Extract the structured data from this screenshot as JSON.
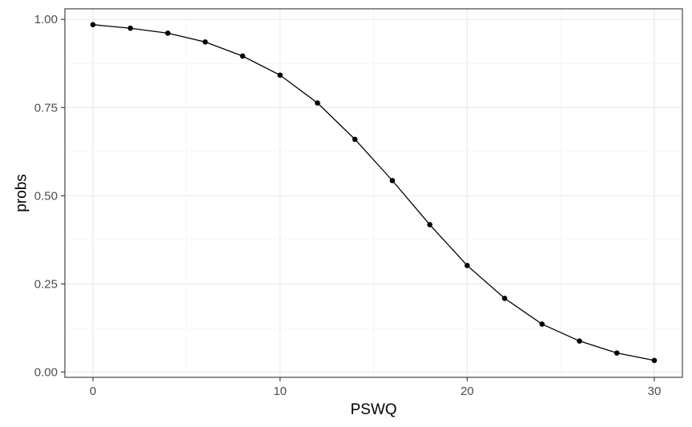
{
  "chart_data": {
    "type": "line",
    "title": "",
    "xlabel": "PSWQ",
    "ylabel": "probs",
    "xlim": [
      -1.5,
      31.5
    ],
    "ylim": [
      -0.015,
      1.03
    ],
    "x_ticks": [
      0,
      10,
      20,
      30
    ],
    "x_tick_labels": [
      "0",
      "10",
      "20",
      "30"
    ],
    "y_ticks": [
      0.0,
      0.25,
      0.5,
      0.75,
      1.0
    ],
    "y_tick_labels": [
      "0.00",
      "0.25",
      "0.50",
      "0.75",
      "1.00"
    ],
    "grid": true,
    "legend": "none",
    "colors": {
      "line": "#000000",
      "point": "#000000",
      "grid_major": "#ebebeb",
      "grid_minor": "#f4f4f4",
      "panel_border": "#333333"
    },
    "series": [
      {
        "x": [
          0,
          2,
          4,
          6,
          8,
          10,
          12,
          14,
          16,
          18,
          20,
          22,
          24,
          26,
          28,
          30
        ],
        "y": [
          0.985,
          0.975,
          0.961,
          0.936,
          0.896,
          0.842,
          0.763,
          0.66,
          0.543,
          0.418,
          0.302,
          0.209,
          0.136,
          0.088,
          0.054,
          0.033
        ]
      }
    ]
  }
}
